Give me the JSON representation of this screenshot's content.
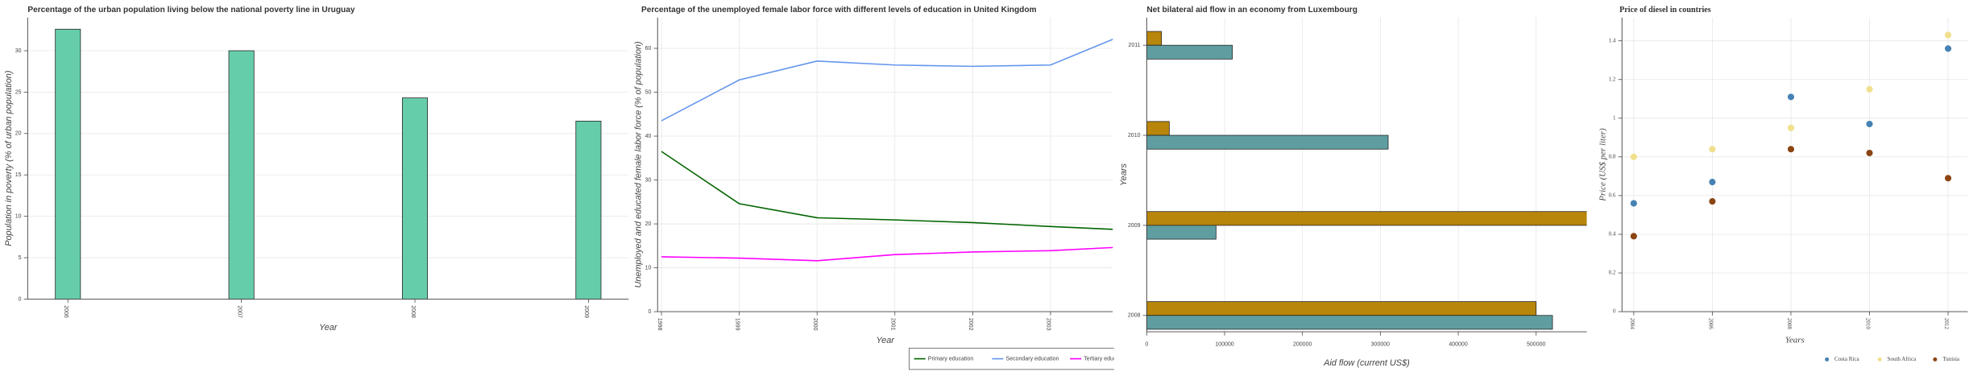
{
  "chart_data": [
    {
      "type": "bar",
      "title": "Percentage of the urban population living below the national poverty line in Uruguay",
      "xlabel": "Year",
      "ylabel": "Population in poverty (% of urban population)",
      "categories": [
        "2006",
        "2007",
        "2008",
        "2009"
      ],
      "values": [
        32.6,
        30.0,
        24.3,
        21.5
      ],
      "color": "#66cdaa",
      "ylim": [
        0,
        34
      ],
      "yticks": [
        0,
        5,
        10,
        15,
        20,
        25,
        30
      ],
      "grid": true
    },
    {
      "type": "line",
      "title": "Percentage of the unemployed female labor force with different levels of education in United Kingdom",
      "xlabel": "Year",
      "ylabel": "Unemployed and educated female labor force (% of population)",
      "x": [
        1998,
        1999,
        2000,
        2001,
        2002,
        2003,
        2004
      ],
      "series": [
        {
          "name": "Primary education",
          "color": "#006400",
          "values": [
            36.5,
            24.6,
            21.4,
            20.9,
            20.3,
            19.4,
            18.6
          ]
        },
        {
          "name": "Secondary education",
          "color": "#6495ed",
          "values": [
            43.5,
            52.8,
            57.1,
            56.2,
            55.9,
            56.2,
            63.5
          ]
        },
        {
          "name": "Tertiary education",
          "color": "#ff00ff",
          "values": [
            12.5,
            12.2,
            11.6,
            13.0,
            13.6,
            13.9,
            14.8
          ]
        }
      ],
      "xlim": [
        1997.95,
        2003.8
      ],
      "xticks": [
        1998,
        1999,
        2000,
        2001,
        2002,
        2003
      ],
      "ylim": [
        0,
        67
      ],
      "yticks": [
        0,
        10,
        20,
        30,
        40,
        50,
        60
      ],
      "grid": true,
      "legend": "bottom-right"
    },
    {
      "type": "hbar",
      "title": "Net bilateral aid flow in an economy from Luxembourg",
      "xlabel": "Aid flow (current US$)",
      "ylabel": "Years",
      "categories": [
        "2008",
        "2009",
        "2010",
        "2011"
      ],
      "series": [
        {
          "color": "#b8860b",
          "values": [
            500000,
            570000,
            29000,
            19000
          ]
        },
        {
          "color": "#5f9ea0",
          "values": [
            521000,
            89000,
            310000,
            110000
          ]
        }
      ],
      "xlim": [
        0,
        565000
      ],
      "xticks": [
        0,
        100000,
        200000,
        300000,
        400000,
        500000
      ],
      "grid": true
    },
    {
      "type": "scatter",
      "title": "Price of diesel in countries",
      "xlabel": "Years",
      "ylabel": "Price (US$ per liter)",
      "x": [
        2004,
        2006,
        2008,
        2010,
        2012
      ],
      "series": [
        {
          "name": "Costa Rica",
          "color": "#4682b4",
          "values": [
            0.56,
            0.67,
            1.11,
            0.97,
            1.36
          ]
        },
        {
          "name": "South Africa",
          "color": "#f0e08c",
          "values": [
            0.8,
            0.84,
            0.95,
            1.15,
            1.43
          ]
        },
        {
          "name": "Tunisia",
          "color": "#8b4513",
          "values": [
            0.39,
            0.57,
            0.84,
            0.82,
            0.69
          ]
        }
      ],
      "xlim": [
        2003.7,
        2012.5
      ],
      "xticks": [
        2004,
        2006,
        2008,
        2010,
        2012
      ],
      "ylim": [
        0,
        1.52
      ],
      "yticks": [
        0,
        0.2,
        0.4,
        0.6,
        0.8,
        1,
        1.2,
        1.4
      ],
      "grid": true,
      "legend": "bottom-right"
    }
  ]
}
